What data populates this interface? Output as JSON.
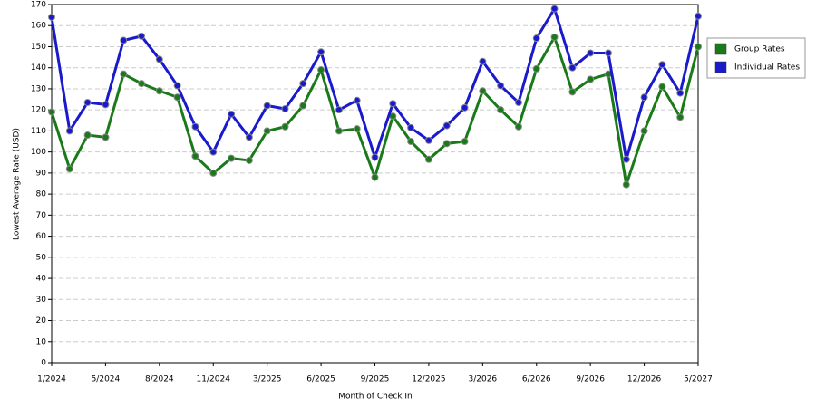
{
  "chart_data": {
    "type": "line",
    "x_label": "Month of Check In",
    "y_label": "Lowest Average Rate (USD)",
    "categories": [
      "1/2024",
      null,
      null,
      "5/2024",
      null,
      null,
      "8/2024",
      null,
      null,
      "11/2024",
      null,
      null,
      "3/2025",
      null,
      null,
      "6/2025",
      null,
      null,
      "9/2025",
      null,
      null,
      "12/2025",
      null,
      null,
      "3/2026",
      null,
      null,
      "6/2026",
      null,
      null,
      "9/2026",
      null,
      null,
      "12/2026",
      null,
      null,
      "5/2027"
    ],
    "series": [
      {
        "name": "Group Rates",
        "color": "#1a7a1a",
        "values": [
          119,
          92,
          108,
          107,
          137,
          132.5,
          129,
          126,
          98,
          90,
          97,
          96,
          110,
          112,
          122,
          139,
          110,
          111,
          88,
          117,
          105,
          96.5,
          104,
          105,
          129,
          120,
          112,
          139.5,
          154.5,
          128.5,
          134.5,
          137,
          84.5,
          110,
          131,
          116.5,
          150
        ]
      },
      {
        "name": "Individual Rates",
        "color": "#1a1acc",
        "values": [
          164,
          110,
          123.5,
          122.5,
          153,
          155,
          144,
          131.5,
          112,
          100,
          118,
          107,
          122,
          120.5,
          132.5,
          147.5,
          120,
          124.5,
          97.5,
          123,
          111.5,
          105.5,
          112.5,
          121,
          143,
          131.5,
          123.5,
          154,
          168,
          140,
          147,
          147,
          96.5,
          126,
          141.5,
          128,
          164.5
        ]
      }
    ],
    "ylim": [
      0,
      170
    ],
    "yticks": [
      0,
      10,
      20,
      30,
      40,
      50,
      60,
      70,
      80,
      90,
      100,
      110,
      120,
      130,
      140,
      150,
      160,
      170
    ],
    "grid": true,
    "legend": "right"
  }
}
